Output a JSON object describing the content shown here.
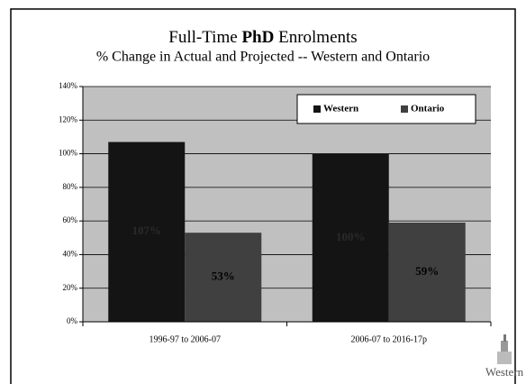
{
  "chart_data": {
    "type": "bar",
    "title_parts": [
      "Full-Time",
      "PhD",
      "Enrolments"
    ],
    "subtitle": "% Change in Actual and Projected  --  Western and Ontario",
    "categories": [
      "1996-97 to 2006-07",
      "2006-07 to 2016-17p"
    ],
    "series": [
      {
        "name": "Western",
        "color": "#141414",
        "values": [
          107,
          100
        ],
        "value_labels": [
          "107%",
          "100%"
        ]
      },
      {
        "name": "Ontario",
        "color": "#404040",
        "values": [
          53,
          59
        ],
        "value_labels": [
          "53%",
          "59%"
        ]
      }
    ],
    "ylim": [
      0,
      140
    ],
    "yticks": [
      {
        "value": 0,
        "label": "0%"
      },
      {
        "value": 20,
        "label": "20%"
      },
      {
        "value": 40,
        "label": "40%"
      },
      {
        "value": 60,
        "label": "60%"
      },
      {
        "value": 80,
        "label": "80%"
      },
      {
        "value": 100,
        "label": "100%"
      },
      {
        "value": 120,
        "label": "120%"
      },
      {
        "value": 140,
        "label": "140%"
      }
    ],
    "grid": true,
    "legend": "top-right",
    "logo_text": "Western"
  }
}
